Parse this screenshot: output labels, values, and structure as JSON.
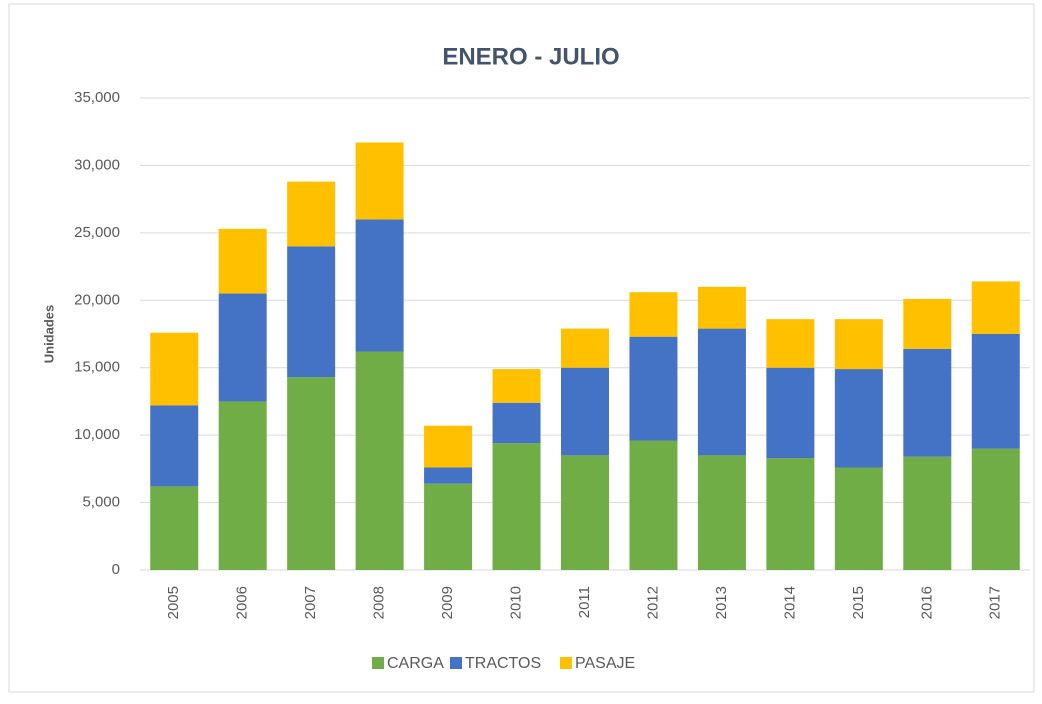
{
  "chart_data": {
    "type": "stacked-bar",
    "title": "ENERO - JULIO",
    "y_label": "Unidades",
    "categories": [
      "2005",
      "2006",
      "2007",
      "2008",
      "2009",
      "2010",
      "2011",
      "2012",
      "2013",
      "2014",
      "2015",
      "2016",
      "2017"
    ],
    "series": [
      {
        "name": "CARGA",
        "color": "#70ad47",
        "values": [
          6200,
          12500,
          14300,
          16200,
          6400,
          9400,
          8500,
          9600,
          8500,
          8300,
          7600,
          8400,
          9000
        ]
      },
      {
        "name": "TRACTOS",
        "color": "#4472c4",
        "values": [
          6000,
          8000,
          9700,
          9800,
          1200,
          3000,
          6500,
          7700,
          9400,
          6700,
          7300,
          8000,
          8500
        ]
      },
      {
        "name": "PASAJE",
        "color": "#ffc000",
        "values": [
          5400,
          4800,
          4800,
          5700,
          3100,
          2500,
          2900,
          3300,
          3100,
          3600,
          3700,
          3700,
          3900
        ]
      }
    ],
    "ylim": [
      0,
      35000
    ],
    "yticks": [
      0,
      {
        "value": 5000,
        "label": "5,000"
      },
      {
        "value": 10000,
        "label": "10,000"
      },
      {
        "value": 15000,
        "label": "15,000"
      },
      {
        "value": 20000,
        "label": "20,000"
      },
      {
        "value": 25000,
        "label": "25,000"
      },
      {
        "value": 30000,
        "label": "30,000"
      },
      {
        "value": 35000,
        "label": "35,000"
      }
    ],
    "grid": true,
    "legend": "bottom"
  }
}
